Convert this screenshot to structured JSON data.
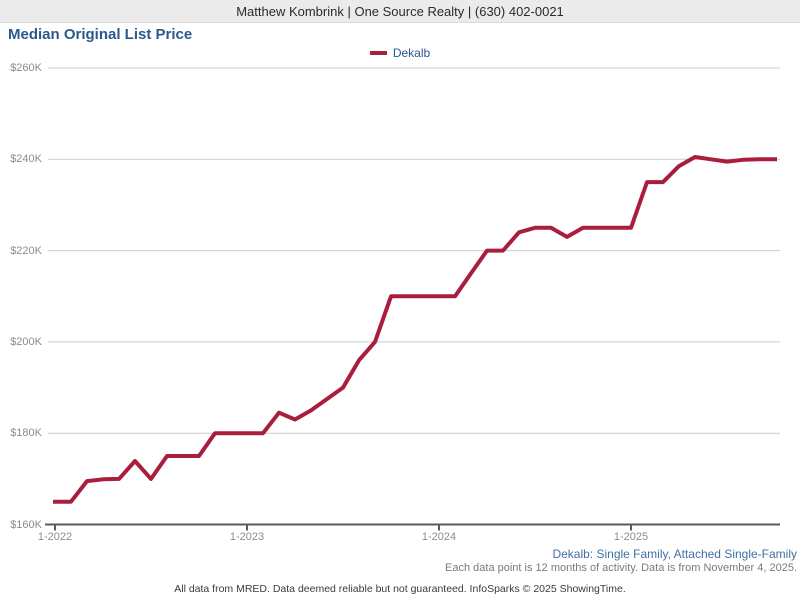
{
  "header": {
    "contact_line": "Matthew Kombrink | One Source Realty | (630) 402-0021"
  },
  "page": {
    "title": "Median Original List Price"
  },
  "legend": {
    "series_label": "Dekalb"
  },
  "footer": {
    "series_scope": "Dekalb: Single Family, Attached Single-Family",
    "data_note": "Each data point is 12 months of activity. Data is from November 4, 2025.",
    "disclaimer": "All data from MRED. Data deemed reliable but not guaranteed. InfoSparks © 2025 ShowingTime."
  },
  "chart_data": {
    "type": "line",
    "title": "Median Original List Price",
    "unit": "USD thousands",
    "ylim": [
      160,
      260
    ],
    "grid": "horizontal",
    "legend_position": "top-center",
    "y_ticks": [
      {
        "label": "$160K",
        "value": 160
      },
      {
        "label": "$180K",
        "value": 180
      },
      {
        "label": "$200K",
        "value": 200
      },
      {
        "label": "$220K",
        "value": 220
      },
      {
        "label": "$240K",
        "value": 240
      },
      {
        "label": "$260K",
        "value": 260
      }
    ],
    "x_tick_labels": [
      "1-2022",
      "1-2023",
      "1-2024",
      "1-2025"
    ],
    "months": [
      "1-2022",
      "2-2022",
      "3-2022",
      "4-2022",
      "5-2022",
      "6-2022",
      "7-2022",
      "8-2022",
      "9-2022",
      "10-2022",
      "11-2022",
      "12-2022",
      "1-2023",
      "2-2023",
      "3-2023",
      "4-2023",
      "5-2023",
      "6-2023",
      "7-2023",
      "8-2023",
      "9-2023",
      "10-2023",
      "11-2023",
      "12-2023",
      "1-2024",
      "2-2024",
      "3-2024",
      "4-2024",
      "5-2024",
      "6-2024",
      "7-2024",
      "8-2024",
      "9-2024",
      "10-2024",
      "11-2024",
      "12-2024",
      "1-2025",
      "2-2025",
      "3-2025",
      "4-2025",
      "5-2025",
      "6-2025",
      "7-2025",
      "8-2025",
      "9-2025",
      "10-2025"
    ],
    "series": [
      {
        "name": "Dekalb",
        "color": "#a91e3c",
        "values": [
          165,
          165,
          169.5,
          169.9,
          170,
          173.9,
          170,
          175,
          175,
          175,
          180,
          180,
          180,
          180,
          184.5,
          183,
          185,
          187.5,
          190,
          196,
          200,
          210,
          210,
          210,
          210,
          210,
          215,
          220,
          220,
          224,
          225,
          225,
          223,
          225,
          225,
          225,
          225,
          235,
          235,
          238.5,
          240.5,
          240,
          239.5,
          239.9,
          240,
          240
        ]
      }
    ]
  }
}
